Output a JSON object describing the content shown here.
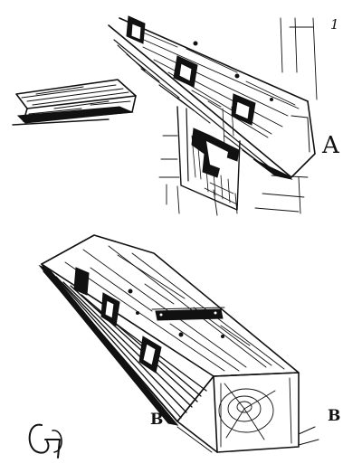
{
  "illustration": {
    "figure_number": "1",
    "label_a": "A",
    "label_b_left": "B",
    "label_b_right": "B"
  }
}
